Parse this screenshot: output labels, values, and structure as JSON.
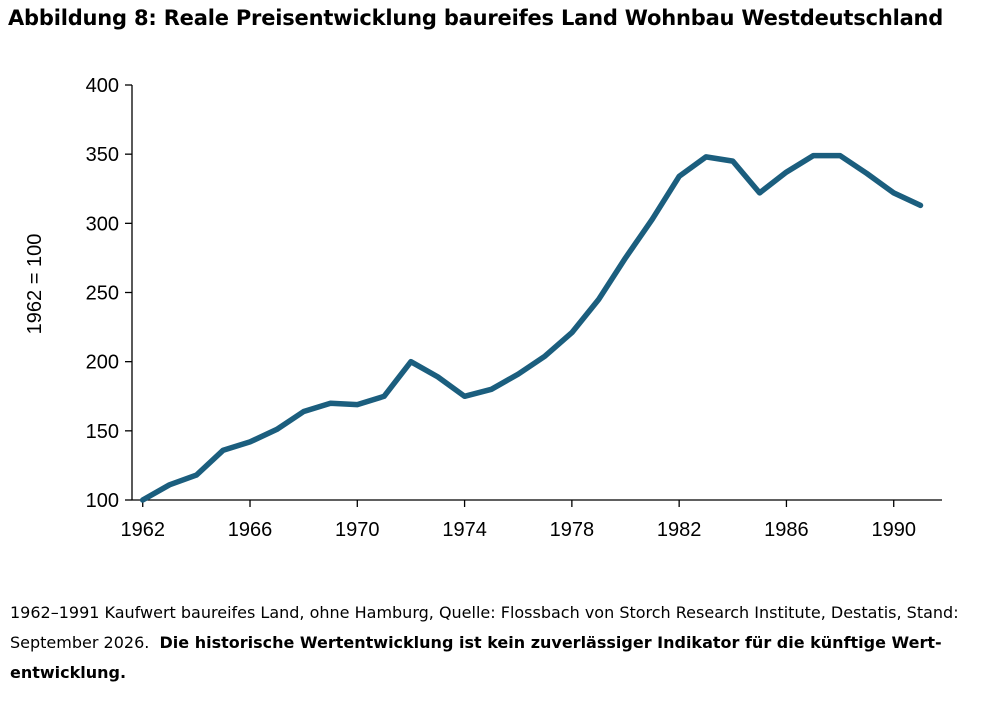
{
  "title": "Abbildung 8: Reale Preisentwicklung baureifes Land Wohnbau Westdeutschland",
  "footnote": {
    "source": "1962–1991 Kaufwert baureifes Land, ohne Hamburg, Quelle: Flossbach von Storch Research Institute, Destatis, Stand: September 2026.",
    "disclaimer": "Die historische Wertentwicklung ist kein zuverlässiger Indikator für die künftige Wert-entwicklung."
  },
  "chart_data": {
    "type": "line",
    "title": "",
    "xlabel": "",
    "ylabel": "1962 = 100",
    "xlim": [
      1961.6,
      1991.8
    ],
    "ylim": [
      100,
      400
    ],
    "yticks": [
      100,
      150,
      200,
      250,
      300,
      350,
      400
    ],
    "xticks": [
      1962,
      1966,
      1970,
      1974,
      1978,
      1982,
      1986,
      1990
    ],
    "grid": false,
    "color": "#1b5e7e",
    "series": [
      {
        "x": [
          1962,
          1963,
          1964,
          1965,
          1966,
          1967,
          1968,
          1969,
          1970,
          1971,
          1972,
          1973,
          1974,
          1975,
          1976,
          1977,
          1978,
          1979,
          1980,
          1981,
          1982,
          1983,
          1984,
          1985,
          1986,
          1987,
          1988,
          1989,
          1990,
          1991
        ],
        "values": [
          100,
          111,
          118,
          136,
          142,
          151,
          164,
          170,
          169,
          175,
          200,
          189,
          175,
          180,
          191,
          204,
          221,
          245,
          275,
          303,
          334,
          348,
          345,
          322,
          337,
          349,
          349,
          336,
          322,
          313
        ]
      }
    ]
  }
}
